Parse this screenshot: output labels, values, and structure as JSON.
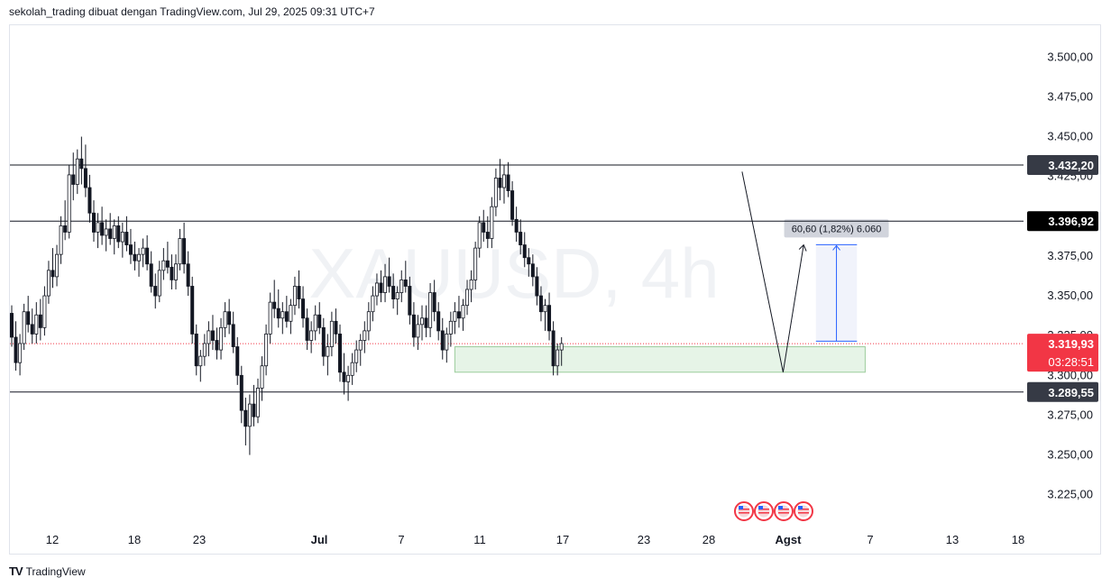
{
  "header": {
    "attribution": "sekolah_trading dibuat dengan TradingView.com, Jul 29, 2025 09:31 UTC+7"
  },
  "footer": {
    "brand": "TradingView",
    "logo": "TV"
  },
  "watermark": "XAUUSD, 4h",
  "colors": {
    "up": "#131722",
    "down": "#131722",
    "current_price": "#f23645",
    "zone": "#c8e6c9",
    "projection": "#e3e8f8",
    "projection_line": "#2962ff"
  },
  "chart_data": {
    "type": "candlestick",
    "symbol": "XAUUSD",
    "interval": "4h",
    "ylim": [
      3205,
      3520
    ],
    "y_ticks": [
      "3.500,00",
      "3.475,00",
      "3.450,00",
      "3.425,00",
      "3.400,00",
      "3.375,00",
      "3.350,00",
      "3.325,00",
      "3.300,00",
      "3.275,00",
      "3.250,00",
      "3.225,00"
    ],
    "y_tick_values": [
      3500,
      3475,
      3450,
      3425,
      3400,
      3375,
      3350,
      3325,
      3300,
      3275,
      3250,
      3225
    ],
    "x_ticks": [
      "12",
      "18",
      "23",
      "Jul",
      "7",
      "11",
      "17",
      "23",
      "28",
      "Agst",
      "7",
      "13",
      "18"
    ],
    "x_tick_bold": [
      "Jul",
      "Agst"
    ],
    "candles": [
      [
        3339,
        3344,
        3318,
        3324
      ],
      [
        3324,
        3334,
        3303,
        3308
      ],
      [
        3308,
        3326,
        3300,
        3320
      ],
      [
        3320,
        3345,
        3316,
        3340
      ],
      [
        3340,
        3350,
        3327,
        3332
      ],
      [
        3332,
        3342,
        3320,
        3326
      ],
      [
        3326,
        3346,
        3320,
        3338
      ],
      [
        3338,
        3348,
        3322,
        3330
      ],
      [
        3330,
        3356,
        3325,
        3350
      ],
      [
        3350,
        3372,
        3345,
        3366
      ],
      [
        3366,
        3380,
        3355,
        3362
      ],
      [
        3362,
        3382,
        3356,
        3376
      ],
      [
        3376,
        3400,
        3370,
        3394
      ],
      [
        3394,
        3410,
        3385,
        3390
      ],
      [
        3390,
        3432,
        3386,
        3426
      ],
      [
        3426,
        3440,
        3410,
        3420
      ],
      [
        3420,
        3442,
        3414,
        3436
      ],
      [
        3436,
        3450,
        3420,
        3430
      ],
      [
        3430,
        3445,
        3412,
        3418
      ],
      [
        3418,
        3426,
        3396,
        3402
      ],
      [
        3402,
        3410,
        3384,
        3390
      ],
      [
        3390,
        3402,
        3380,
        3396
      ],
      [
        3396,
        3406,
        3382,
        3388
      ],
      [
        3388,
        3398,
        3378,
        3392
      ],
      [
        3392,
        3402,
        3382,
        3386
      ],
      [
        3386,
        3398,
        3376,
        3394
      ],
      [
        3394,
        3400,
        3380,
        3384
      ],
      [
        3384,
        3396,
        3374,
        3390
      ],
      [
        3390,
        3400,
        3378,
        3382
      ],
      [
        3382,
        3392,
        3370,
        3376
      ],
      [
        3376,
        3384,
        3366,
        3372
      ],
      [
        3372,
        3380,
        3362,
        3376
      ],
      [
        3376,
        3386,
        3368,
        3380
      ],
      [
        3380,
        3388,
        3366,
        3370
      ],
      [
        3370,
        3378,
        3352,
        3356
      ],
      [
        3356,
        3364,
        3342,
        3350
      ],
      [
        3350,
        3372,
        3346,
        3366
      ],
      [
        3366,
        3380,
        3360,
        3372
      ],
      [
        3372,
        3384,
        3364,
        3368
      ],
      [
        3368,
        3376,
        3354,
        3360
      ],
      [
        3360,
        3376,
        3354,
        3370
      ],
      [
        3370,
        3392,
        3366,
        3386
      ],
      [
        3386,
        3396,
        3364,
        3370
      ],
      [
        3370,
        3378,
        3350,
        3356
      ],
      [
        3356,
        3362,
        3320,
        3326
      ],
      [
        3326,
        3332,
        3300,
        3306
      ],
      [
        3306,
        3316,
        3296,
        3312
      ],
      [
        3312,
        3326,
        3306,
        3320
      ],
      [
        3320,
        3334,
        3312,
        3328
      ],
      [
        3328,
        3338,
        3316,
        3322
      ],
      [
        3322,
        3330,
        3310,
        3316
      ],
      [
        3316,
        3336,
        3310,
        3330
      ],
      [
        3330,
        3346,
        3324,
        3340
      ],
      [
        3340,
        3348,
        3326,
        3332
      ],
      [
        3332,
        3340,
        3314,
        3318
      ],
      [
        3318,
        3324,
        3294,
        3300
      ],
      [
        3300,
        3306,
        3270,
        3278
      ],
      [
        3278,
        3286,
        3256,
        3268
      ],
      [
        3268,
        3288,
        3250,
        3282
      ],
      [
        3282,
        3294,
        3268,
        3274
      ],
      [
        3274,
        3298,
        3270,
        3292
      ],
      [
        3292,
        3312,
        3284,
        3306
      ],
      [
        3306,
        3332,
        3300,
        3326
      ],
      [
        3326,
        3352,
        3320,
        3346
      ],
      [
        3346,
        3360,
        3336,
        3342
      ],
      [
        3342,
        3354,
        3330,
        3336
      ],
      [
        3336,
        3346,
        3326,
        3340
      ],
      [
        3340,
        3350,
        3330,
        3334
      ],
      [
        3334,
        3348,
        3326,
        3344
      ],
      [
        3344,
        3362,
        3338,
        3356
      ],
      [
        3356,
        3366,
        3342,
        3348
      ],
      [
        3348,
        3356,
        3330,
        3336
      ],
      [
        3336,
        3342,
        3316,
        3322
      ],
      [
        3322,
        3334,
        3314,
        3328
      ],
      [
        3328,
        3344,
        3322,
        3338
      ],
      [
        3338,
        3346,
        3326,
        3330
      ],
      [
        3330,
        3336,
        3306,
        3312
      ],
      [
        3312,
        3326,
        3300,
        3318
      ],
      [
        3318,
        3340,
        3312,
        3334
      ],
      [
        3334,
        3342,
        3320,
        3326
      ],
      [
        3326,
        3332,
        3296,
        3302
      ],
      [
        3302,
        3314,
        3288,
        3296
      ],
      [
        3296,
        3306,
        3284,
        3300
      ],
      [
        3300,
        3314,
        3294,
        3308
      ],
      [
        3308,
        3322,
        3302,
        3316
      ],
      [
        3316,
        3326,
        3306,
        3322
      ],
      [
        3322,
        3334,
        3314,
        3328
      ],
      [
        3328,
        3346,
        3322,
        3340
      ],
      [
        3340,
        3356,
        3334,
        3350
      ],
      [
        3350,
        3364,
        3344,
        3358
      ],
      [
        3358,
        3366,
        3346,
        3352
      ],
      [
        3352,
        3370,
        3346,
        3362
      ],
      [
        3362,
        3374,
        3352,
        3356
      ],
      [
        3356,
        3364,
        3342,
        3348
      ],
      [
        3348,
        3356,
        3338,
        3352
      ],
      [
        3352,
        3366,
        3346,
        3360
      ],
      [
        3360,
        3372,
        3352,
        3356
      ],
      [
        3356,
        3362,
        3332,
        3338
      ],
      [
        3338,
        3346,
        3318,
        3324
      ],
      [
        3324,
        3338,
        3316,
        3332
      ],
      [
        3332,
        3344,
        3322,
        3336
      ],
      [
        3336,
        3344,
        3324,
        3330
      ],
      [
        3330,
        3358,
        3324,
        3352
      ],
      [
        3352,
        3360,
        3334,
        3340
      ],
      [
        3340,
        3346,
        3322,
        3328
      ],
      [
        3328,
        3336,
        3310,
        3316
      ],
      [
        3316,
        3330,
        3308,
        3326
      ],
      [
        3326,
        3340,
        3318,
        3334
      ],
      [
        3334,
        3346,
        3326,
        3340
      ],
      [
        3340,
        3350,
        3330,
        3336
      ],
      [
        3336,
        3348,
        3328,
        3344
      ],
      [
        3344,
        3360,
        3338,
        3354
      ],
      [
        3354,
        3366,
        3346,
        3360
      ],
      [
        3360,
        3384,
        3354,
        3380
      ],
      [
        3380,
        3400,
        3374,
        3396
      ],
      [
        3396,
        3404,
        3384,
        3390
      ],
      [
        3390,
        3400,
        3380,
        3386
      ],
      [
        3386,
        3412,
        3380,
        3406
      ],
      [
        3406,
        3430,
        3400,
        3424
      ],
      [
        3424,
        3436,
        3410,
        3418
      ],
      [
        3418,
        3432,
        3408,
        3426
      ],
      [
        3426,
        3434,
        3412,
        3416
      ],
      [
        3416,
        3422,
        3394,
        3398
      ],
      [
        3398,
        3406,
        3384,
        3390
      ],
      [
        3390,
        3398,
        3376,
        3382
      ],
      [
        3382,
        3390,
        3368,
        3374
      ],
      [
        3374,
        3380,
        3362,
        3370
      ],
      [
        3370,
        3376,
        3356,
        3362
      ],
      [
        3362,
        3368,
        3344,
        3350
      ],
      [
        3350,
        3356,
        3334,
        3340
      ],
      [
        3340,
        3348,
        3328,
        3344
      ],
      [
        3344,
        3352,
        3322,
        3328
      ],
      [
        3328,
        3334,
        3300,
        3306
      ],
      [
        3306,
        3320,
        3300,
        3316
      ],
      [
        3316,
        3324,
        3306,
        3320
      ]
    ],
    "levels": [
      {
        "price": 3432.2,
        "label": "3.432,20",
        "style": "dark"
      },
      {
        "price": 3396.92,
        "label": "3.396,92",
        "style": "black"
      },
      {
        "price": 3289.55,
        "label": "3.289,55",
        "style": "dark"
      }
    ],
    "current_price": {
      "price": 3319.93,
      "label": "3.319,93",
      "countdown": "03:28:51"
    },
    "demand_zone": {
      "from_bar": 108,
      "to_bar": 208,
      "low": 3302,
      "high": 3318
    },
    "projection": {
      "from_bar": 196,
      "to_bar": 206,
      "low": 3321.5,
      "high": 3382.1,
      "label": "60,60 (1,82%) 6.060"
    },
    "forecast_path": [
      {
        "bar": 178,
        "price": 3428
      },
      {
        "bar": 188,
        "price": 3302
      },
      {
        "bar": 193,
        "price": 3382
      }
    ],
    "event_icons": 4
  }
}
